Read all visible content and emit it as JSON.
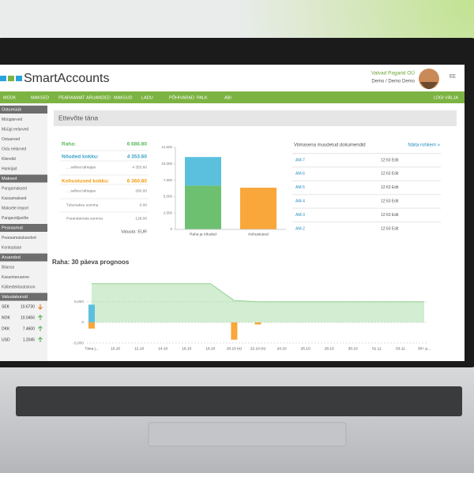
{
  "header": {
    "logo": "SmartAccounts",
    "company": "Valvad Pagarid OÜ",
    "user": "Demo / Demo Demo",
    "lang": "EE"
  },
  "nav": {
    "items": [
      "MÜÜK",
      "MAKSED",
      "PEARAAMAT",
      "ARUANDED",
      "MAKSUD",
      "LADU",
      "PÕHIVARAD",
      "PALK",
      "ABI"
    ],
    "logout": "LOGI VÄLJA"
  },
  "sidebar": {
    "sections": [
      {
        "title": "Ostumüük",
        "items": [
          "Müügiarved",
          "Müügi eelarved",
          "Ostuarved",
          "Ostu eelarved",
          "Kliendid",
          "Hankijad"
        ]
      },
      {
        "title": "Maksed",
        "items": [
          "Pangamaksed",
          "Kassamaksed",
          "Maksete import",
          "Pangaväljavõte"
        ]
      },
      {
        "title": "Pearaamat",
        "items": [
          "Pearaamatukanded",
          "Kontoplaan"
        ]
      },
      {
        "title": "Aruanded",
        "items": [
          "Bilanss",
          "Kasumiaruanne",
          "Käibedeklaratsioon"
        ]
      }
    ],
    "rates_title": "Valuutakursid",
    "rates": [
      {
        "code": "SEK",
        "rate": "10.6730",
        "trend": "down"
      },
      {
        "code": "NOK",
        "rate": "10.0456",
        "trend": "up"
      },
      {
        "code": "DKK",
        "rate": "7.4600",
        "trend": "up"
      },
      {
        "code": "USD",
        "rate": "1.2045",
        "trend": "up"
      }
    ]
  },
  "page_title": "Ettevõte täna",
  "summary": {
    "rows": [
      {
        "label": "Raha:",
        "value": "6 686.80",
        "color": "#5cb85c",
        "bold": true
      },
      {
        "label": "Nõuded kokku:",
        "value": "4 353.60",
        "color": "#3aa0c8",
        "bold": true
      },
      {
        "label": "... sellest tähtajas",
        "value": "4 353.60",
        "color": "#777",
        "bold": false
      },
      {
        "label": "Kohustused kokku:",
        "value": "6 360.80",
        "color": "#f39c12",
        "bold": true
      },
      {
        "label": "... sellest tähtajas",
        "value": "260.00",
        "color": "#777",
        "bold": false
      },
      {
        "label": "Tulumaksu summa",
        "value": "0.00",
        "color": "#777",
        "bold": false
      },
      {
        "label": "Parandamata summa",
        "value": "128.00",
        "color": "#777",
        "bold": false
      }
    ],
    "currency": "Valuuta: EUR"
  },
  "documents": {
    "title": "Viimasena muudetud dokumendid",
    "more": "Näita rohkem »",
    "rows": [
      [
        "AM-7",
        "12:63 Edit"
      ],
      [
        "AM-6",
        "12:63 Edit"
      ],
      [
        "AM-5",
        "12:63 Edit"
      ],
      [
        "AM-4",
        "12:63 Edit"
      ],
      [
        "AM-3",
        "12:63 Edit"
      ],
      [
        "AM-2",
        "12:63 Edit"
      ]
    ]
  },
  "chart_data": [
    {
      "type": "bar",
      "stacked": true,
      "categories": [
        "Raha ja nõuded",
        "Kohustused"
      ],
      "series": [
        {
          "color": "#6cc070",
          "values": [
            6686.8,
            null
          ]
        },
        {
          "color": "#5bc0de",
          "values": [
            4353.6,
            null
          ]
        },
        {
          "color": "#f9a63a",
          "values": [
            null,
            6360.8
          ]
        }
      ],
      "ylim": [
        0,
        12500
      ],
      "yticks": [
        0,
        {
          "value": 2500,
          "label": "2,500"
        },
        {
          "value": 5000,
          "label": "5,000"
        },
        {
          "value": 7500,
          "label": "7,500"
        },
        {
          "value": 10000,
          "label": "10,000"
        },
        {
          "value": 12500,
          "label": "12,500"
        }
      ]
    },
    {
      "type": "combo",
      "title": "Raha: 30 päeva prognoos",
      "categories": [
        "Täna j...",
        "10.10",
        "12.10",
        "14.10",
        "16.10",
        "18.10",
        "20.10 (n)",
        "22.10 (n)",
        "24.10",
        "26.10",
        "28.10",
        "30.10",
        "01.11",
        "03.11",
        "30+ p..."
      ],
      "series": [
        {
          "type": "area",
          "color": "#8fd18f",
          "values": [
            9400,
            9400,
            9400,
            9400,
            9400,
            9400,
            5300,
            5000,
            5000,
            5000,
            5000,
            5000,
            5000,
            5000,
            5000
          ]
        },
        {
          "type": "bar",
          "color": "#5bc0de",
          "values": [
            4300,
            null,
            null,
            null,
            null,
            null,
            null,
            null,
            null,
            null,
            null,
            null,
            null,
            null,
            null
          ]
        },
        {
          "type": "bar",
          "color": "#f9a63a",
          "values": [
            -1500,
            null,
            null,
            null,
            null,
            null,
            -4200,
            -500,
            null,
            null,
            null,
            null,
            null,
            null,
            null
          ]
        }
      ],
      "ylim": [
        -5000,
        10500
      ],
      "yticks": [
        {
          "value": -5000,
          "label": "-5,000"
        },
        0,
        {
          "value": 5000,
          "label": "5,000"
        }
      ]
    }
  ]
}
